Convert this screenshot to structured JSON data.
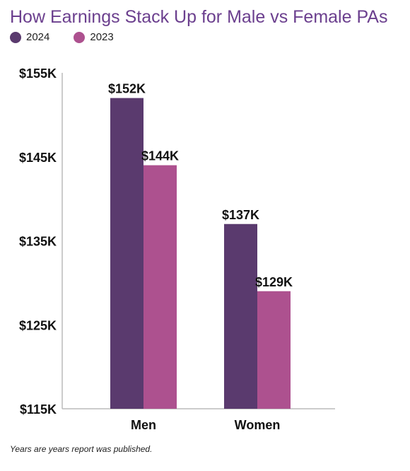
{
  "chart_data": {
    "type": "bar",
    "title": "How Earnings Stack Up for Male vs Female PAs",
    "categories": [
      "Men",
      "Women"
    ],
    "series": [
      {
        "name": "2024",
        "values": [
          152,
          137
        ],
        "labels": [
          "$152K",
          "$137K"
        ],
        "color": "#5a3a6e"
      },
      {
        "name": "2023",
        "values": [
          144,
          129
        ],
        "labels": [
          "$144K",
          "$129K"
        ],
        "color": "#ad518f"
      }
    ],
    "ylim": [
      115,
      155
    ],
    "yticks": [
      {
        "value": 155,
        "label": "$155K"
      },
      {
        "value": 145,
        "label": "$145K"
      },
      {
        "value": 135,
        "label": "$135K"
      },
      {
        "value": 125,
        "label": "$125K"
      },
      {
        "value": 115,
        "label": "$115K"
      }
    ],
    "xlabel": "",
    "ylabel": "",
    "legend_position": "top-left",
    "grid": false
  },
  "footnote": "Years are years report was published."
}
